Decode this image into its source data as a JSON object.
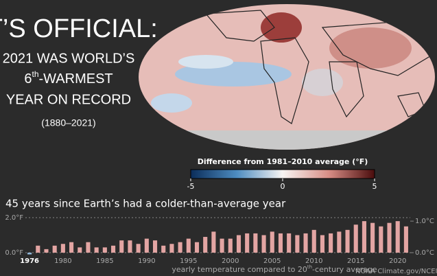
{
  "header": {
    "line1": "IT’S OFFICIAL:",
    "line2": "2021 WAS WORLD’S",
    "line3_number": "6",
    "line3_suffix": "th",
    "line3_rest": "-WARMEST",
    "line4": "YEAR ON RECORD",
    "period": "(1880–2021)"
  },
  "colorbar": {
    "title": "Difference from 1981–2010 average (°F)",
    "ticks": [
      -5,
      0,
      5
    ],
    "lim": [
      -5,
      5
    ]
  },
  "chart_data": {
    "type": "bar",
    "title": "45 years since Earth’s had a colder-than-average year",
    "xlabel_before": "yearly temperature compared to 20",
    "xlabel_sup": "th",
    "xlabel_after": "-century average",
    "credit": "NOAA Climate.gov/NCEI",
    "categories": [
      1976,
      null,
      null,
      null,
      1980,
      null,
      null,
      null,
      null,
      1985,
      null,
      null,
      null,
      null,
      1990,
      null,
      null,
      null,
      null,
      1995,
      null,
      null,
      null,
      null,
      2000,
      null,
      null,
      null,
      null,
      2005,
      null,
      null,
      null,
      null,
      2010,
      null,
      null,
      null,
      null,
      2015,
      null,
      null,
      null,
      null,
      2020,
      null
    ],
    "values": [
      -0.1,
      0.4,
      0.2,
      0.4,
      0.5,
      0.6,
      0.3,
      0.6,
      0.3,
      0.3,
      0.4,
      0.7,
      0.7,
      0.5,
      0.8,
      0.7,
      0.4,
      0.5,
      0.6,
      0.8,
      0.6,
      0.9,
      1.2,
      0.8,
      0.8,
      1.0,
      1.1,
      1.1,
      1.0,
      1.2,
      1.1,
      1.1,
      1.0,
      1.1,
      1.3,
      1.0,
      1.1,
      1.2,
      1.3,
      1.6,
      1.8,
      1.7,
      1.5,
      1.7,
      1.8,
      1.5
    ],
    "color": "#e3a5a3",
    "negative_color": "#8fb6d8",
    "ylim": [
      0,
      2
    ],
    "yticks": [
      {
        "value": 0,
        "label": "0.0°F"
      },
      {
        "value": 2,
        "label": "2.0°F"
      }
    ],
    "y2lim": [
      0,
      1.1111
    ],
    "y2ticks": [
      {
        "value": 0,
        "label": "0.0°C"
      },
      {
        "value": 1,
        "label": "1.0°C"
      }
    ],
    "grid": true
  }
}
